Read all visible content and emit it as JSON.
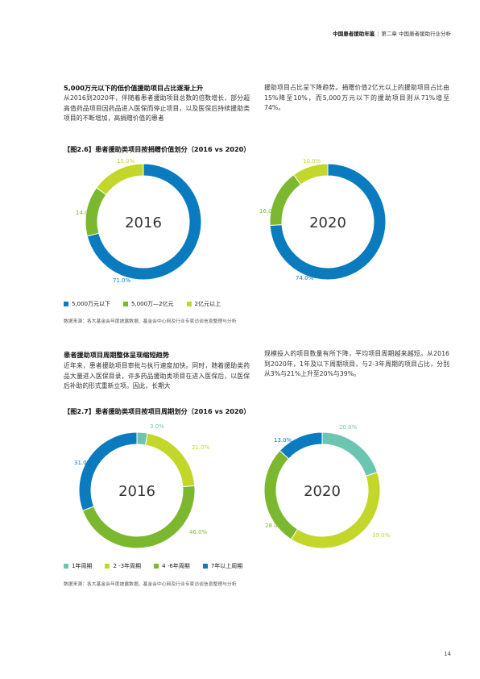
{
  "header": {
    "yearbook": "中国患者援助年鉴",
    "chapter": "第二章 中国患者援助行业分析"
  },
  "section1": {
    "heading": "5,000万元以下的低价值援助项目占比逐渐上升",
    "col1": "从2016到2020年，伴随着患者援助项目总数的倍数增长，部分超高值药品项目因药品进入医保而停止项目，以及医保后持续援助类项目的不断增加，高捐赠价值的患者",
    "col2": "援助项目占比呈下降趋势。捐赠价值2亿元以上的援助项目占比由15%降至10%，而5,000万元以下的援助项目则从71%增至74%。"
  },
  "figure1": {
    "title": "【图2.6】患者援助类项目按捐赠价值划分（2016 vs 2020）",
    "source": "数据来源：各大基金会年度披露数据、基金会中心网及行业专家访谈信息整理与分析",
    "legend": [
      {
        "label": "5,000万元以下",
        "color": "#0a7bbf"
      },
      {
        "label": "5,000万—2亿元",
        "color": "#7cb82f"
      },
      {
        "label": "2亿元以上",
        "color": "#c3d62a"
      }
    ]
  },
  "section2": {
    "heading": "患者援助项目周期整体呈现缩短趋势",
    "col1": "近年来，患者援助项目审批与执行速度加快。同时，随着援助类药品大量进入医保目录，许多药品援助类项目在进入医保后，以医保后补助的形式重新立项。因此，长期大",
    "col2": "规模投入的项目数量有所下降，平均项目周期越来越短。从2016到2020年，1年及以下周期项目，与2-3年周期的项目占比，分别从3%与21%上升至20%与39%。"
  },
  "figure2": {
    "title": "【图2.7】患者援助类项目按项目周期划分（2016 vs 2020）",
    "source": "数据来源：各大基金会年度披露数据、基金会中心网及行业专家访谈信息整理与分析",
    "legend": [
      {
        "label": "1年周期",
        "color": "#6cc5b0"
      },
      {
        "label": "2 -3年周期",
        "color": "#c3d62a"
      },
      {
        "label": "4 -6年周期",
        "color": "#7cb82f"
      },
      {
        "label": "7年以上周期",
        "color": "#0a7bbf"
      }
    ]
  },
  "chart_data": [
    {
      "type": "pie",
      "center_label": "2016",
      "slices": [
        {
          "value": 71.0,
          "label": "71.0%",
          "color": "#0a7bbf"
        },
        {
          "value": 14.0,
          "label": "14.0%",
          "color": "#7cb82f"
        },
        {
          "value": 15.0,
          "label": "15.0%",
          "color": "#c3d62a"
        }
      ]
    },
    {
      "type": "pie",
      "center_label": "2020",
      "slices": [
        {
          "value": 74.0,
          "label": "74.0%",
          "color": "#0a7bbf"
        },
        {
          "value": 16.0,
          "label": "16.0%",
          "color": "#7cb82f"
        },
        {
          "value": 10.0,
          "label": "10.0%",
          "color": "#c3d62a"
        }
      ]
    },
    {
      "type": "pie",
      "center_label": "2016",
      "slices": [
        {
          "value": 3.0,
          "label": "3.0%",
          "color": "#6cc5b0"
        },
        {
          "value": 21.0,
          "label": "21.0%",
          "color": "#c3d62a"
        },
        {
          "value": 46.0,
          "label": "46.0%",
          "color": "#7cb82f"
        },
        {
          "value": 31.0,
          "label": "31.0%",
          "color": "#0a7bbf"
        }
      ]
    },
    {
      "type": "pie",
      "center_label": "2020",
      "slices": [
        {
          "value": 20.0,
          "label": "20.0%",
          "color": "#6cc5b0"
        },
        {
          "value": 39.0,
          "label": "39.0%",
          "color": "#c3d62a"
        },
        {
          "value": 28.0,
          "label": "28.0%",
          "color": "#7cb82f"
        },
        {
          "value": 13.0,
          "label": "13.0%",
          "color": "#0a7bbf"
        }
      ]
    }
  ],
  "page_number": "14"
}
